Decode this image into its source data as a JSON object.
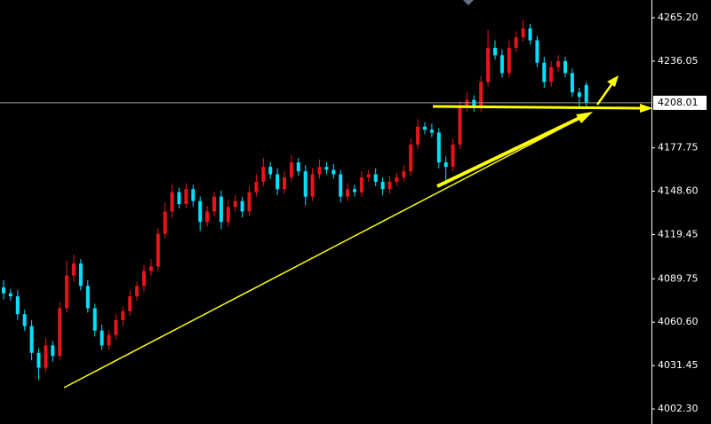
{
  "chart_data": {
    "type": "candlestick",
    "up_color": "#e8141c",
    "down_color": "#00e0ff",
    "ylim": [
      3992.2,
      4277.1
    ],
    "yticks": [
      {
        "value": 4265.2,
        "label": "4265.20"
      },
      4236.05,
      4177.75,
      {
        "value": 4148.6,
        "label": "4148.60"
      },
      4119.45,
      4089.75,
      {
        "value": 4060.6,
        "label": "4060.60"
      },
      4031.45,
      {
        "value": 4002.3,
        "label": "4002.30"
      }
    ],
    "current_price": 4208.01,
    "open": [
      4084,
      4080,
      4078,
      4066,
      4058,
      4040,
      4030,
      4045,
      4038,
      4070,
      4092,
      4100,
      4085,
      4070,
      4055,
      4045,
      4052,
      4062,
      4068,
      4078,
      4085,
      4095,
      4098,
      4120,
      4135,
      4148,
      4140,
      4150,
      4142,
      4128,
      4135,
      4145,
      4128,
      4138,
      4142,
      4135,
      4148,
      4155,
      4165,
      4160,
      4150,
      4158,
      4168,
      4162,
      4145,
      4160,
      4165,
      4163,
      4160,
      4145,
      4150,
      4148,
      4158,
      4160,
      4155,
      4150,
      4155,
      4158,
      4162,
      4180,
      4192,
      4190,
      4188,
      4168,
      4165,
      4180,
      4205,
      4210,
      4205,
      4222,
      4245,
      4240,
      4228,
      4245,
      4252,
      4258,
      4250,
      4235,
      4222,
      4232,
      4236,
      4228,
      4215,
      4220
    ],
    "high": [
      4089,
      4083,
      4082,
      4069,
      4062,
      4043,
      4050,
      4048,
      4074,
      4102,
      4106,
      4103,
      4089,
      4073,
      4059,
      4055,
      4066,
      4071,
      4082,
      4088,
      4099,
      4103,
      4124,
      4141,
      4153,
      4151,
      4154,
      4153,
      4145,
      4139,
      4148,
      4149,
      4143,
      4146,
      4145,
      4152,
      4160,
      4171,
      4168,
      4164,
      4162,
      4173,
      4171,
      4166,
      4164,
      4170,
      4168,
      4167,
      4163,
      4154,
      4153,
      4162,
      4163,
      4164,
      4158,
      4159,
      4161,
      4166,
      4184,
      4197,
      4195,
      4194,
      4191,
      4172,
      4184,
      4209,
      4215,
      4213,
      4226,
      4257,
      4250,
      4244,
      4250,
      4256,
      4264,
      4261,
      4253,
      4239,
      4236,
      4240,
      4239,
      4231,
      4218,
      4222
    ],
    "low": [
      4076,
      4075,
      4062,
      4055,
      4035,
      4022,
      4027,
      4034,
      4035,
      4067,
      4088,
      4082,
      4067,
      4051,
      4042,
      4042,
      4049,
      4058,
      4065,
      4075,
      4081,
      4092,
      4095,
      4117,
      4131,
      4137,
      4137,
      4138,
      4122,
      4125,
      4132,
      4123,
      4125,
      4135,
      4131,
      4132,
      4145,
      4152,
      4157,
      4146,
      4147,
      4155,
      4159,
      4139,
      4142,
      4157,
      4160,
      4157,
      4141,
      4142,
      4145,
      4145,
      4155,
      4152,
      4146,
      4147,
      4152,
      4155,
      4159,
      4177,
      4187,
      4185,
      4164,
      4153,
      4162,
      4177,
      4202,
      4202,
      4202,
      4219,
      4237,
      4225,
      4225,
      4242,
      4249,
      4247,
      4232,
      4218,
      4219,
      4229,
      4225,
      4212,
      4204,
      4205
    ],
    "close": [
      4080,
      4078,
      4066,
      4058,
      4040,
      4030,
      4045,
      4038,
      4070,
      4092,
      4100,
      4085,
      4070,
      4055,
      4045,
      4052,
      4062,
      4068,
      4078,
      4085,
      4095,
      4098,
      4120,
      4135,
      4148,
      4140,
      4150,
      4142,
      4128,
      4135,
      4145,
      4128,
      4138,
      4142,
      4135,
      4148,
      4155,
      4165,
      4160,
      4150,
      4158,
      4168,
      4162,
      4145,
      4160,
      4165,
      4163,
      4160,
      4145,
      4150,
      4148,
      4158,
      4160,
      4155,
      4150,
      4155,
      4158,
      4162,
      4180,
      4192,
      4190,
      4188,
      4168,
      4165,
      4180,
      4205,
      4210,
      4205,
      4222,
      4245,
      4240,
      4228,
      4245,
      4252,
      4258,
      4250,
      4235,
      4222,
      4232,
      4236,
      4228,
      4215,
      4212,
      4208
    ]
  }
}
